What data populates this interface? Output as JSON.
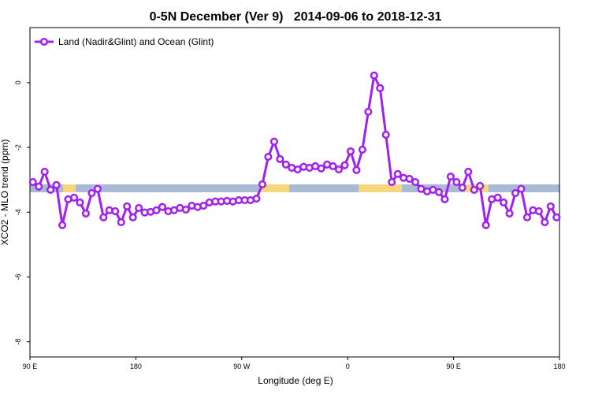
{
  "chart_data": {
    "type": "line",
    "title": "0-5N December (Ver 9)   2014-09-06 to 2018-12-31",
    "xlabel": "Longitude (deg E)",
    "ylabel": "XCO2 - MLO trend (ppm)",
    "xlim": [
      90,
      540
    ],
    "ylim": [
      -8.47,
      1.7
    ],
    "xticks": [
      {
        "value": 90,
        "label": "90 E"
      },
      180,
      {
        "value": 270,
        "label": "90 W"
      },
      {
        "value": 360,
        "label": "0"
      },
      {
        "value": 450,
        "label": "90 E"
      },
      {
        "value": 540,
        "label": "180"
      }
    ],
    "yticks": [
      0,
      -2,
      -4,
      -6,
      -8
    ],
    "legend": "top-left",
    "x": [
      92.5,
      97.5,
      102.5,
      107.5,
      112.5,
      117.5,
      122.5,
      127.5,
      132.5,
      137.5,
      142.5,
      147.5,
      152.5,
      157.5,
      162.5,
      167.5,
      172.5,
      177.5,
      182.5,
      187.5,
      192.5,
      197.5,
      202.5,
      207.5,
      212.5,
      217.5,
      222.5,
      227.5,
      232.5,
      237.5,
      242.5,
      247.5,
      252.5,
      257.5,
      262.5,
      267.5,
      272.5,
      277.5,
      282.5,
      287.5,
      292.5,
      297.5,
      302.5,
      307.5,
      312.5,
      317.5,
      322.5,
      327.5,
      332.5,
      337.5,
      342.5,
      347.5,
      352.5,
      357.5,
      362.5,
      367.5,
      372.5,
      377.5,
      382.5,
      387.5,
      392.5,
      397.5,
      402.5,
      407.5,
      412.5,
      417.5,
      422.5,
      427.5,
      432.5,
      437.5,
      442.5,
      447.5,
      452.5,
      457.5,
      462.5,
      467.5,
      472.5,
      477.5,
      482.5,
      487.5,
      492.5,
      497.5,
      502.5,
      507.5,
      512.5,
      517.5,
      522.5,
      527.5,
      532.5,
      537.5
    ],
    "series": [
      {
        "name": "Land (Nadir&Glint) and Ocean (Glint)",
        "color": "#a020f0",
        "values": [
          -3.07,
          -3.21,
          -2.75,
          -3.31,
          -3.16,
          -4.4,
          -3.6,
          -3.55,
          -3.7,
          -4.04,
          -3.41,
          -3.28,
          -4.16,
          -3.94,
          -3.97,
          -4.31,
          -3.82,
          -4.16,
          -3.87,
          -4.01,
          -3.99,
          -3.94,
          -3.84,
          -3.97,
          -3.94,
          -3.87,
          -3.92,
          -3.8,
          -3.84,
          -3.8,
          -3.7,
          -3.67,
          -3.67,
          -3.65,
          -3.67,
          -3.63,
          -3.63,
          -3.63,
          -3.58,
          -3.14,
          -2.29,
          -1.82,
          -2.36,
          -2.53,
          -2.63,
          -2.68,
          -2.6,
          -2.63,
          -2.58,
          -2.65,
          -2.53,
          -2.58,
          -2.68,
          -2.55,
          -2.12,
          -2.7,
          -2.07,
          -0.9,
          0.22,
          -0.17,
          -1.61,
          -3.07,
          -2.82,
          -2.94,
          -2.97,
          -3.07,
          -3.28,
          -3.36,
          -3.31,
          -3.38,
          -3.6,
          -2.9,
          -3.07,
          -3.24,
          -2.75,
          -3.31,
          -3.19,
          -4.4,
          -3.6,
          -3.55,
          -3.7,
          -4.04,
          -3.41,
          -3.28,
          -4.16,
          -3.94,
          -3.97,
          -4.31,
          -3.82,
          -4.16
        ]
      }
    ]
  }
}
